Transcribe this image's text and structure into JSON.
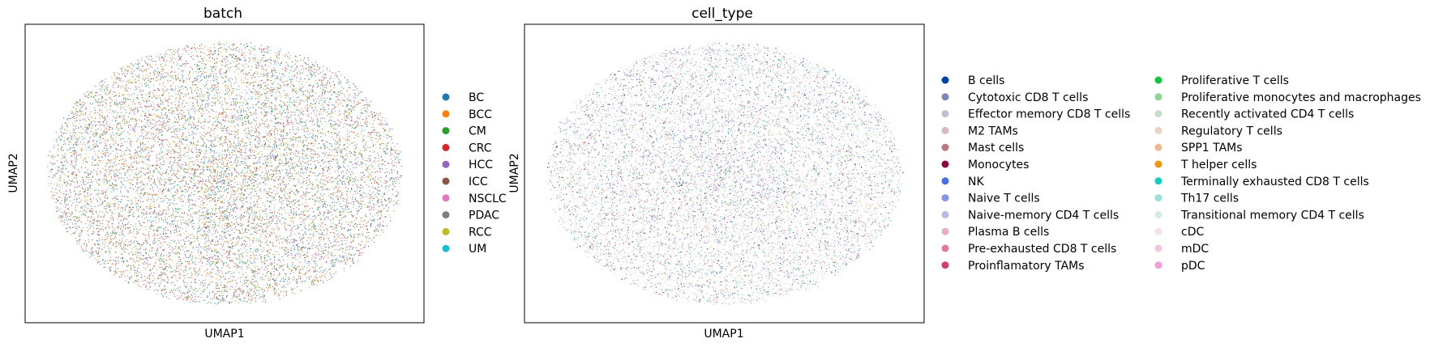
{
  "chart_data": [
    {
      "type": "scatter",
      "title": "batch",
      "xlabel": "UMAP1",
      "ylabel": "UMAP2",
      "ticks": false,
      "grid": false,
      "legend_position": "right",
      "point_size": "very small",
      "categories": [
        {
          "name": "BC",
          "color": "#1f77b4"
        },
        {
          "name": "BCC",
          "color": "#ff7f0e"
        },
        {
          "name": "CM",
          "color": "#2ca02c"
        },
        {
          "name": "CRC",
          "color": "#d62728"
        },
        {
          "name": "HCC",
          "color": "#9467bd"
        },
        {
          "name": "ICC",
          "color": "#8c564b"
        },
        {
          "name": "NSCLC",
          "color": "#e377c2"
        },
        {
          "name": "PDAC",
          "color": "#7f7f7f"
        },
        {
          "name": "RCC",
          "color": "#bcbd22"
        },
        {
          "name": "UM",
          "color": "#17becf"
        }
      ]
    },
    {
      "type": "scatter",
      "title": "cell_type",
      "xlabel": "UMAP1",
      "ylabel": "UMAP2",
      "ticks": false,
      "grid": false,
      "legend_position": "right",
      "legend_columns": 2,
      "point_size": "very small",
      "categories": [
        {
          "name": "B cells",
          "color": "#023fa5"
        },
        {
          "name": "Cytotoxic CD8 T cells",
          "color": "#7d87b9"
        },
        {
          "name": "Effector memory CD8 T cells",
          "color": "#bec1d4"
        },
        {
          "name": "M2 TAMs",
          "color": "#d6bcc0"
        },
        {
          "name": "Mast cells",
          "color": "#bb7784"
        },
        {
          "name": "Monocytes",
          "color": "#8e063b"
        },
        {
          "name": "NK",
          "color": "#4a6fe3"
        },
        {
          "name": "Naive T cells",
          "color": "#8595e1"
        },
        {
          "name": "Naive-memory CD4 T cells",
          "color": "#b5bbe3"
        },
        {
          "name": "Plasma B cells",
          "color": "#e6afb9"
        },
        {
          "name": "Pre-exhausted CD8 T cells",
          "color": "#e07b91"
        },
        {
          "name": "Proinflamatory TAMs",
          "color": "#d33f6a"
        },
        {
          "name": "Proliferative T cells",
          "color": "#11c638"
        },
        {
          "name": "Proliferative monocytes and macrophages",
          "color": "#8dd593"
        },
        {
          "name": "Recently activated CD4 T cells",
          "color": "#c6dec7"
        },
        {
          "name": "Regulatory T cells",
          "color": "#ead3c6"
        },
        {
          "name": "SPP1 TAMs",
          "color": "#f0b98d"
        },
        {
          "name": "T helper cells",
          "color": "#ef9708"
        },
        {
          "name": "Terminally exhausted CD8 T cells",
          "color": "#0fcfc0"
        },
        {
          "name": "Th17 cells",
          "color": "#9cded6"
        },
        {
          "name": "Transitional memory CD4 T cells",
          "color": "#d5eae7"
        },
        {
          "name": "cDC",
          "color": "#f3e1eb"
        },
        {
          "name": "mDC",
          "color": "#f6c4e1"
        },
        {
          "name": "pDC",
          "color": "#f79cd4"
        }
      ]
    }
  ]
}
